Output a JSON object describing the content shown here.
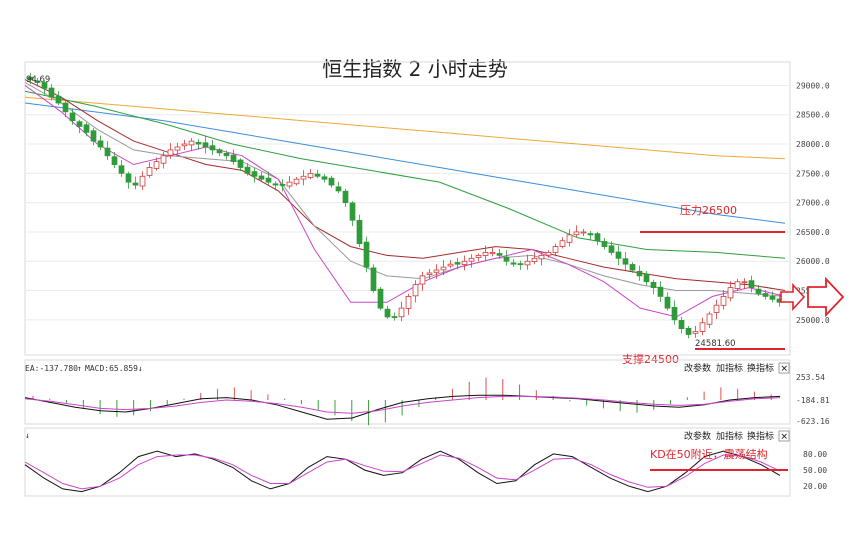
{
  "chart_data": {
    "type": "candlestick",
    "title": "恒生指数 2 小时走势",
    "price_axis": {
      "ylim": [
        24400,
        29400
      ],
      "ticks": [
        "29000.0",
        "28500.0",
        "28000.0",
        "27500.0",
        "27000.0",
        "26500.0",
        "26000.0",
        "25500.0",
        "25000.0"
      ]
    },
    "high_label": "94.69",
    "low_label": "24581.60",
    "closes": [
      29100,
      29050,
      28950,
      28800,
      28700,
      28550,
      28400,
      28300,
      28200,
      28050,
      27950,
      27800,
      27650,
      27500,
      27350,
      27300,
      27450,
      27600,
      27700,
      27800,
      27900,
      27950,
      28000,
      28050,
      28000,
      27950,
      27900,
      27850,
      27800,
      27700,
      27600,
      27500,
      27450,
      27400,
      27350,
      27300,
      27300,
      27350,
      27400,
      27450,
      27500,
      27450,
      27400,
      27300,
      27200,
      27000,
      26700,
      26300,
      25900,
      25500,
      25200,
      25050,
      25050,
      25200,
      25400,
      25600,
      25750,
      25800,
      25850,
      25900,
      25950,
      25950,
      26000,
      26050,
      26100,
      26150,
      26150,
      26100,
      26000,
      25950,
      25950,
      26000,
      26050,
      26100,
      26150,
      26250,
      26350,
      26450,
      26500,
      26500,
      26450,
      26350,
      26250,
      26150,
      26050,
      25950,
      25850,
      25750,
      25650,
      25550,
      25400,
      25200,
      25000,
      24850,
      24750,
      24800,
      24950,
      25100,
      25250,
      25400,
      25550,
      25650,
      25650,
      25550,
      25450,
      25400,
      25350,
      25300
    ],
    "moving_averages": [
      {
        "color": "#f0a838",
        "values": [
          28800,
          28700,
          28600,
          28500,
          28400,
          28300,
          28200,
          28100,
          28000,
          27900,
          27800,
          27750
        ]
      },
      {
        "color": "#3a8edc",
        "values": [
          28700,
          28550,
          28400,
          28200,
          28000,
          27800,
          27600,
          27400,
          27200,
          27000,
          26800,
          26650
        ]
      },
      {
        "color": "#2e9e3e",
        "values": [
          28900,
          28650,
          28350,
          28000,
          27750,
          27550,
          27350,
          26900,
          26400,
          26200,
          26150,
          26050
        ]
      },
      {
        "color": "#a52a2a",
        "values": [
          29100,
          28800,
          28400,
          28050,
          27850,
          27650,
          27550,
          27200,
          26600,
          26250,
          26100,
          26050,
          26150,
          26250,
          26200,
          26050,
          25900,
          25800,
          25700,
          25650,
          25600,
          25500
        ]
      },
      {
        "color": "#999999",
        "values": [
          29050,
          28700,
          28250,
          27900,
          27800,
          27750,
          27700,
          27400,
          26600,
          26000,
          25750,
          25700,
          25900,
          26050,
          26100,
          25950,
          25750,
          25600,
          25500,
          25500,
          25450,
          25400
        ]
      },
      {
        "color": "#cc44cc",
        "values": [
          29000,
          28550,
          28000,
          27650,
          27800,
          27950,
          27800,
          27400,
          26200,
          25300,
          25300,
          25650,
          25900,
          26050,
          26200,
          25950,
          25650,
          25200,
          25050,
          25400,
          25550,
          25400
        ]
      }
    ],
    "resistance": {
      "label": "压力26500",
      "value": 26500
    },
    "support": {
      "label": "支撑24500",
      "value": 24500
    },
    "macd": {
      "header_left": "EA:-137.780",
      "header_mid": "MACD:65.859",
      "ticks": [
        "253.54",
        "-184.81",
        "-623.16"
      ],
      "histogram": [
        0.3,
        0.1,
        -0.2,
        -0.6,
        -1.0,
        -1.2,
        -1.1,
        -0.8,
        -0.4,
        0.1,
        0.5,
        0.8,
        0.9,
        0.7,
        0.4,
        0.1,
        -0.3,
        -0.7,
        -1.1,
        -1.5,
        -1.8,
        -1.6,
        -1.1,
        -0.5,
        0.2,
        0.8,
        1.3,
        1.6,
        1.5,
        1.1,
        0.7,
        0.3,
        -0.1,
        -0.4,
        -0.6,
        -0.8,
        -0.9,
        -0.7,
        -0.3,
        0.2,
        0.6,
        0.9,
        0.8,
        0.6,
        0.4
      ],
      "dif": [
        0.2,
        -0.2,
        -0.6,
        -0.9,
        -1.0,
        -0.7,
        -0.3,
        0.1,
        0.2,
        0.0,
        -0.4,
        -1.0,
        -1.6,
        -1.5,
        -0.8,
        -0.2,
        0.1,
        0.3,
        0.4,
        0.4,
        0.3,
        0.2,
        0.1,
        -0.1,
        -0.3,
        -0.5,
        -0.6,
        -0.4,
        0.0,
        0.2,
        0.3
      ],
      "dea": [
        0.1,
        -0.1,
        -0.4,
        -0.7,
        -0.8,
        -0.7,
        -0.5,
        -0.2,
        0.0,
        -0.1,
        -0.3,
        -0.6,
        -1.0,
        -1.1,
        -0.9,
        -0.5,
        -0.2,
        0.0,
        0.2,
        0.3,
        0.3,
        0.25,
        0.15,
        0.0,
        -0.2,
        -0.35,
        -0.45,
        -0.35,
        -0.1,
        0.1,
        0.2
      ]
    },
    "kd": {
      "ticks": [
        "80.00",
        "50.00",
        "20.00"
      ],
      "k": [
        60,
        35,
        15,
        10,
        20,
        45,
        75,
        85,
        75,
        80,
        70,
        55,
        30,
        15,
        25,
        55,
        75,
        70,
        50,
        40,
        45,
        70,
        85,
        70,
        45,
        25,
        30,
        60,
        80,
        75,
        55,
        35,
        20,
        10,
        20,
        45,
        75,
        85,
        75,
        60,
        40
      ],
      "d": [
        65,
        45,
        25,
        15,
        20,
        35,
        60,
        75,
        78,
        78,
        72,
        60,
        40,
        25,
        25,
        45,
        65,
        70,
        58,
        48,
        47,
        62,
        78,
        72,
        55,
        35,
        32,
        50,
        70,
        72,
        60,
        42,
        28,
        18,
        20,
        38,
        62,
        78,
        76,
        65,
        48
      ],
      "line_label": "KD在50附近，震荡结构",
      "line_value": 50
    },
    "buttons": {
      "params": "改参数",
      "add": "加指标",
      "switch": "换指标",
      "close": "✕"
    }
  }
}
